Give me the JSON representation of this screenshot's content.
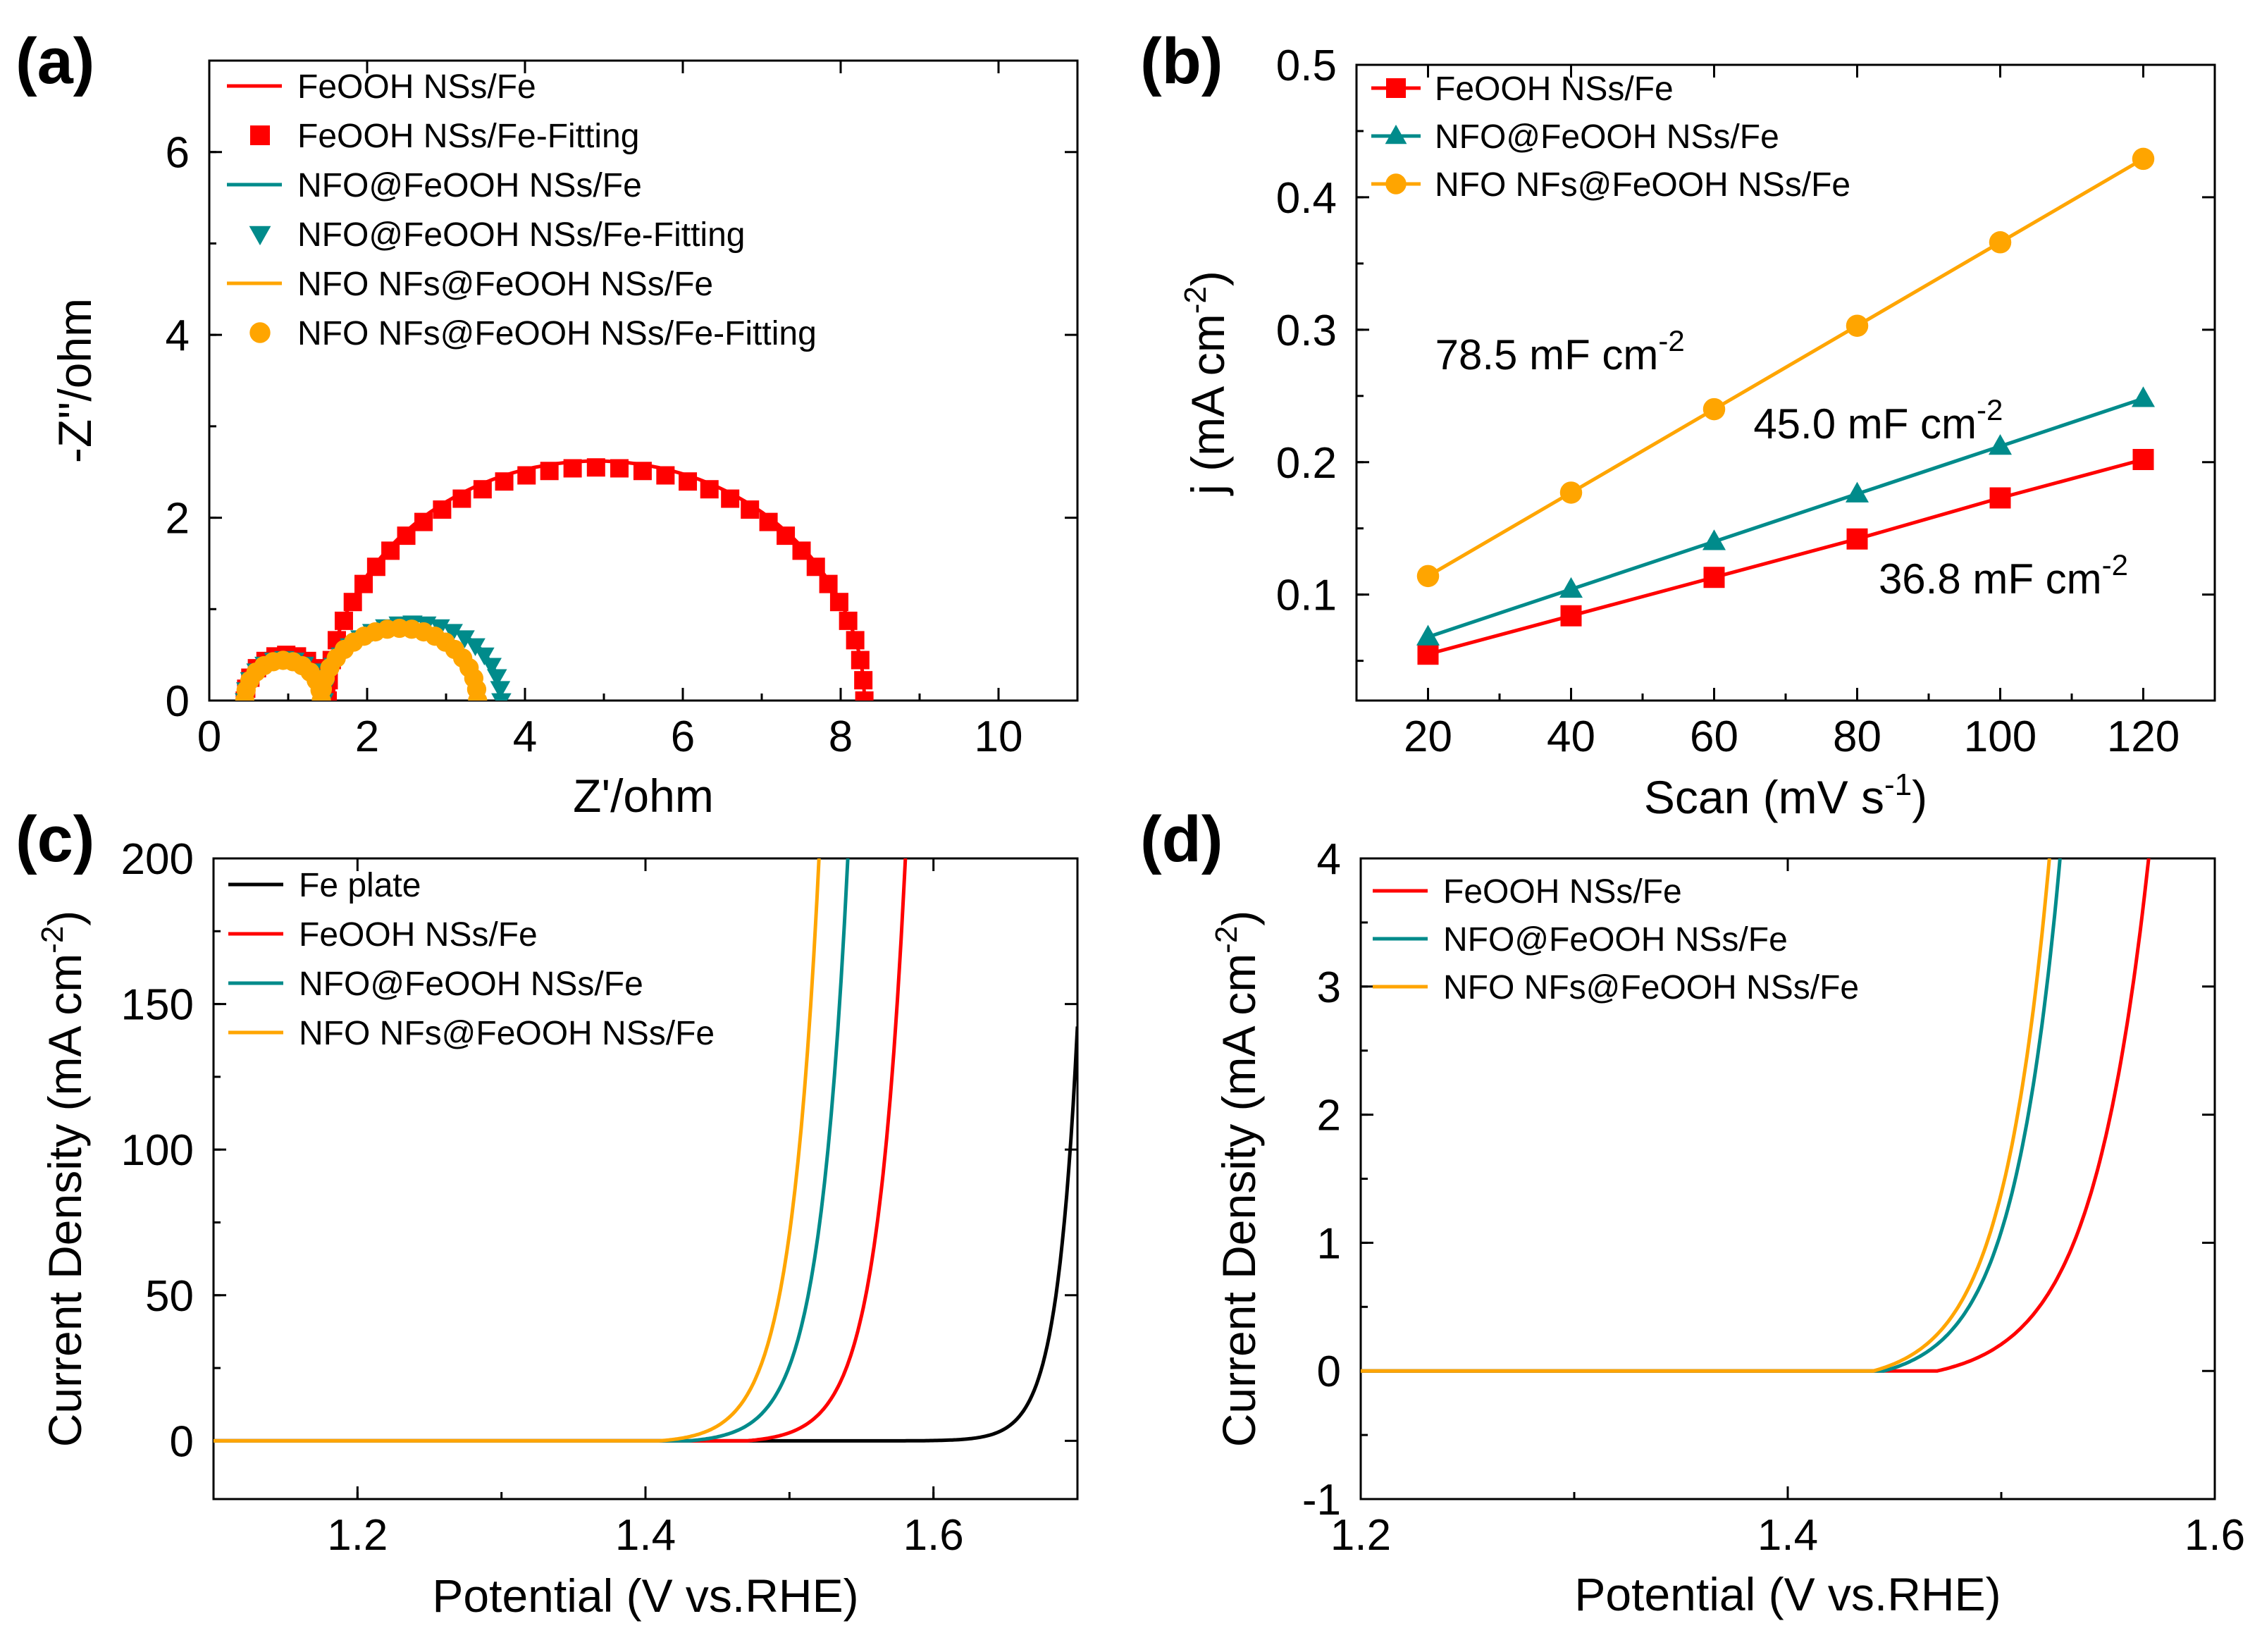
{
  "colors": {
    "red": "#ff0000",
    "teal": "#008b8b",
    "orange": "#ffa500",
    "black": "#000000"
  },
  "chart_data": [
    {
      "panel": "(a)",
      "type": "scatter",
      "xlabel": "Z'/ohm",
      "ylabel": "-Z''/ohm",
      "xlim": [
        0,
        11
      ],
      "ylim": [
        0,
        7
      ],
      "xticks": [
        0,
        2,
        4,
        6,
        8,
        10
      ],
      "yticks": [
        0,
        2,
        4,
        6
      ],
      "legend_position": "top-left",
      "series": [
        {
          "name": "FeOOH NSs/Fe",
          "kind": "line",
          "color": "red",
          "arcs": [
            {
              "x0": 0.45,
              "x1": 1.5,
              "h": 0.5
            },
            {
              "x0": 1.5,
              "x1": 8.3,
              "h": 2.62,
              "stretch": 0.96
            }
          ]
        },
        {
          "name": "FeOOH NSs/Fe-Fitting",
          "kind": "marker",
          "marker": "square",
          "color": "red",
          "arcs": [
            {
              "x0": 0.45,
              "x1": 1.5,
              "h": 0.5
            },
            {
              "x0": 1.5,
              "x1": 8.3,
              "h": 2.55,
              "stretch": 0.96
            }
          ]
        },
        {
          "name": "NFO@FeOOH NSs/Fe",
          "kind": "line",
          "color": "teal",
          "arcs": [
            {
              "x0": 0.45,
              "x1": 1.45,
              "h": 0.48
            },
            {
              "x0": 1.45,
              "x1": 3.7,
              "h": 0.88
            }
          ]
        },
        {
          "name": "NFO@FeOOH NSs/Fe-Fitting",
          "kind": "marker",
          "marker": "triangle-down",
          "color": "teal",
          "arcs": [
            {
              "x0": 0.45,
              "x1": 1.45,
              "h": 0.46
            },
            {
              "x0": 1.45,
              "x1": 3.7,
              "h": 0.85
            }
          ]
        },
        {
          "name": "NFO NFs@FeOOH NSs/Fe",
          "kind": "line",
          "color": "orange",
          "arcs": [
            {
              "x0": 0.45,
              "x1": 1.42,
              "h": 0.46
            },
            {
              "x0": 1.42,
              "x1": 3.4,
              "h": 0.82
            }
          ]
        },
        {
          "name": "NFO NFs@FeOOH NSs/Fe-Fitting",
          "kind": "marker",
          "marker": "circle",
          "color": "orange",
          "arcs": [
            {
              "x0": 0.45,
              "x1": 1.42,
              "h": 0.44
            },
            {
              "x0": 1.42,
              "x1": 3.4,
              "h": 0.79
            }
          ]
        }
      ]
    },
    {
      "panel": "(b)",
      "type": "line",
      "xlabel": "Scan (mV s",
      "xlabel_sup": "-1",
      "xlabel_end": ")",
      "ylabel": "j (mA cm",
      "ylabel_sup": "-2",
      "ylabel_end": ")",
      "xlim": [
        10,
        130
      ],
      "ylim": [
        0.02,
        0.5
      ],
      "xticks": [
        20,
        40,
        60,
        80,
        100,
        120
      ],
      "yticks": [
        0.1,
        0.2,
        0.3,
        0.4,
        0.5
      ],
      "legend_position": "top-left",
      "x": [
        20,
        40,
        60,
        80,
        100,
        120
      ],
      "series": [
        {
          "name": "FeOOH NSs/Fe",
          "marker": "square",
          "color": "red",
          "values": [
            0.055,
            0.084,
            0.113,
            0.142,
            0.173,
            0.202
          ]
        },
        {
          "name": "NFO@FeOOH NSs/Fe",
          "marker": "triangle-up",
          "color": "teal",
          "values": [
            0.068,
            0.104,
            0.14,
            0.176,
            0.212,
            0.248
          ]
        },
        {
          "name": "NFO NFs@FeOOH NSs/Fe",
          "marker": "circle",
          "color": "orange",
          "values": [
            0.114,
            0.177,
            0.24,
            0.303,
            0.366,
            0.429
          ]
        }
      ],
      "annotations": [
        {
          "text": "78.5 mF cm",
          "sup": "-2",
          "x": 21,
          "y": 0.27
        },
        {
          "text": "45.0 mF cm",
          "sup": "-2",
          "x": 65.5,
          "y": 0.218
        },
        {
          "text": "36.8 mF cm",
          "sup": "-2",
          "x": 83,
          "y": 0.101
        }
      ]
    },
    {
      "panel": "(c)",
      "type": "line",
      "xlabel": "Potential (V vs.RHE)",
      "ylabel": "Current Density (mA cm",
      "ylabel_sup": "-2",
      "ylabel_end": ")",
      "xlim": [
        1.1,
        1.7
      ],
      "ylim": [
        -20,
        200
      ],
      "xticks": [
        1.2,
        1.4,
        1.6
      ],
      "yticks": [
        0,
        50,
        100,
        150,
        200
      ],
      "legend_position": "top-left",
      "series": [
        {
          "name": "Fe plate",
          "color": "black",
          "onset": 1.58,
          "scale": 0.032,
          "slope": 70,
          "xmax": 1.7
        },
        {
          "name": "FeOOH NSs/Fe",
          "color": "red",
          "onset": 1.47,
          "scale": 0.8,
          "slope": 50,
          "xmax": 1.6
        },
        {
          "name": "NFO@FeOOH NSs/Fe",
          "color": "teal",
          "onset": 1.43,
          "scale": 0.8,
          "slope": 50,
          "xmax": 1.56
        },
        {
          "name": "NFO NFs@FeOOH NSs/Fe",
          "color": "orange",
          "onset": 1.41,
          "scale": 0.8,
          "slope": 50,
          "xmax": 1.54
        }
      ]
    },
    {
      "panel": "(d)",
      "type": "line",
      "xlabel": "Potential (V vs.RHE)",
      "ylabel": "Current Density (mA cm",
      "ylabel_sup": "-2",
      "ylabel_end": ")",
      "xlim": [
        1.2,
        1.6
      ],
      "ylim": [
        -1,
        4
      ],
      "xticks": [
        1.2,
        1.4,
        1.6
      ],
      "yticks": [
        -1,
        0,
        1,
        2,
        3,
        4
      ],
      "legend_position": "top-left",
      "series": [
        {
          "name": "FeOOH NSs/Fe",
          "color": "red",
          "onset": 1.47,
          "scale": 0.1,
          "slope": 37.5,
          "xmax": 1.6
        },
        {
          "name": "NFO@FeOOH NSs/Fe",
          "color": "teal",
          "onset": 1.445,
          "scale": 0.1,
          "slope": 45,
          "xmax": 1.6
        },
        {
          "name": "NFO NFs@FeOOH NSs/Fe",
          "color": "orange",
          "onset": 1.44,
          "scale": 0.1,
          "slope": 45,
          "xmax": 1.6
        }
      ]
    }
  ]
}
